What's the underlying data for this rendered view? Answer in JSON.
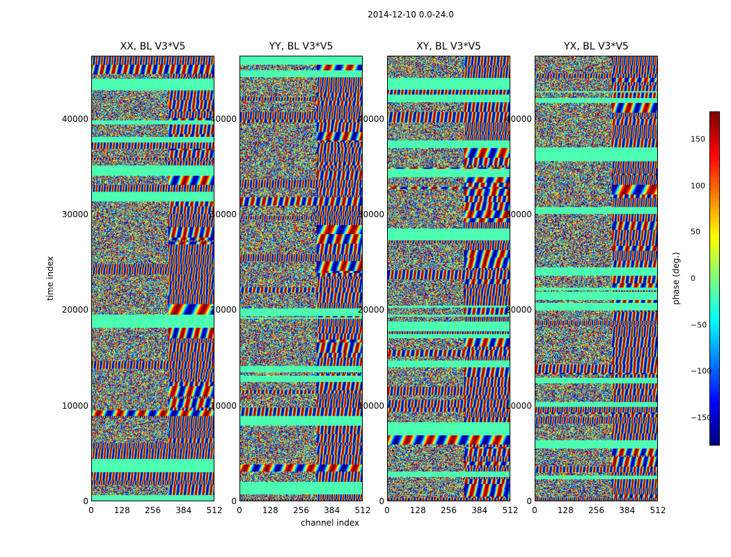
{
  "figure": {
    "suptitle": "2014-12-10 0.0-24.0"
  },
  "chart_data": [
    {
      "type": "heatmap",
      "title": "XX, BL V3*V5",
      "xlabel": "",
      "ylabel": "time index",
      "xlim": [
        0,
        512
      ],
      "ylim": [
        0,
        46600
      ],
      "xticks": [
        "0",
        "128",
        "256",
        "384",
        "512"
      ],
      "yticks": [
        "0",
        "10000",
        "20000",
        "30000",
        "40000"
      ],
      "colormap": "jet"
    },
    {
      "type": "heatmap",
      "title": "YY, BL V3*V5",
      "xlabel": "channel index",
      "ylabel": "",
      "xlim": [
        0,
        512
      ],
      "ylim": [
        0,
        46600
      ],
      "xticks": [
        "0",
        "128",
        "256",
        "384",
        "512"
      ],
      "yticks": [
        "0",
        "10000",
        "20000",
        "30000",
        "40000"
      ],
      "colormap": "jet"
    },
    {
      "type": "heatmap",
      "title": "XY, BL V3*V5",
      "xlabel": "",
      "ylabel": "",
      "xlim": [
        0,
        512
      ],
      "ylim": [
        0,
        46600
      ],
      "xticks": [
        "0",
        "128",
        "256",
        "384",
        "512"
      ],
      "yticks": [
        "0",
        "10000",
        "20000",
        "30000",
        "40000"
      ],
      "colormap": "jet"
    },
    {
      "type": "heatmap",
      "title": "YX, BL V3*V5",
      "xlabel": "",
      "ylabel": "",
      "xlim": [
        0,
        512
      ],
      "ylim": [
        0,
        46600
      ],
      "xticks": [
        "0",
        "128",
        "256",
        "384",
        "512"
      ],
      "yticks": [
        "0",
        "10000",
        "20000",
        "30000",
        "40000"
      ],
      "colormap": "jet"
    }
  ],
  "colorbar": {
    "label": "phase (deg.)",
    "range": [
      -180,
      180
    ],
    "ticks": [
      "150",
      "100",
      "50",
      "0",
      "−50",
      "−100",
      "−150"
    ],
    "tick_values": [
      150,
      100,
      50,
      0,
      -50,
      -100,
      -150
    ],
    "colormap": "jet"
  }
}
